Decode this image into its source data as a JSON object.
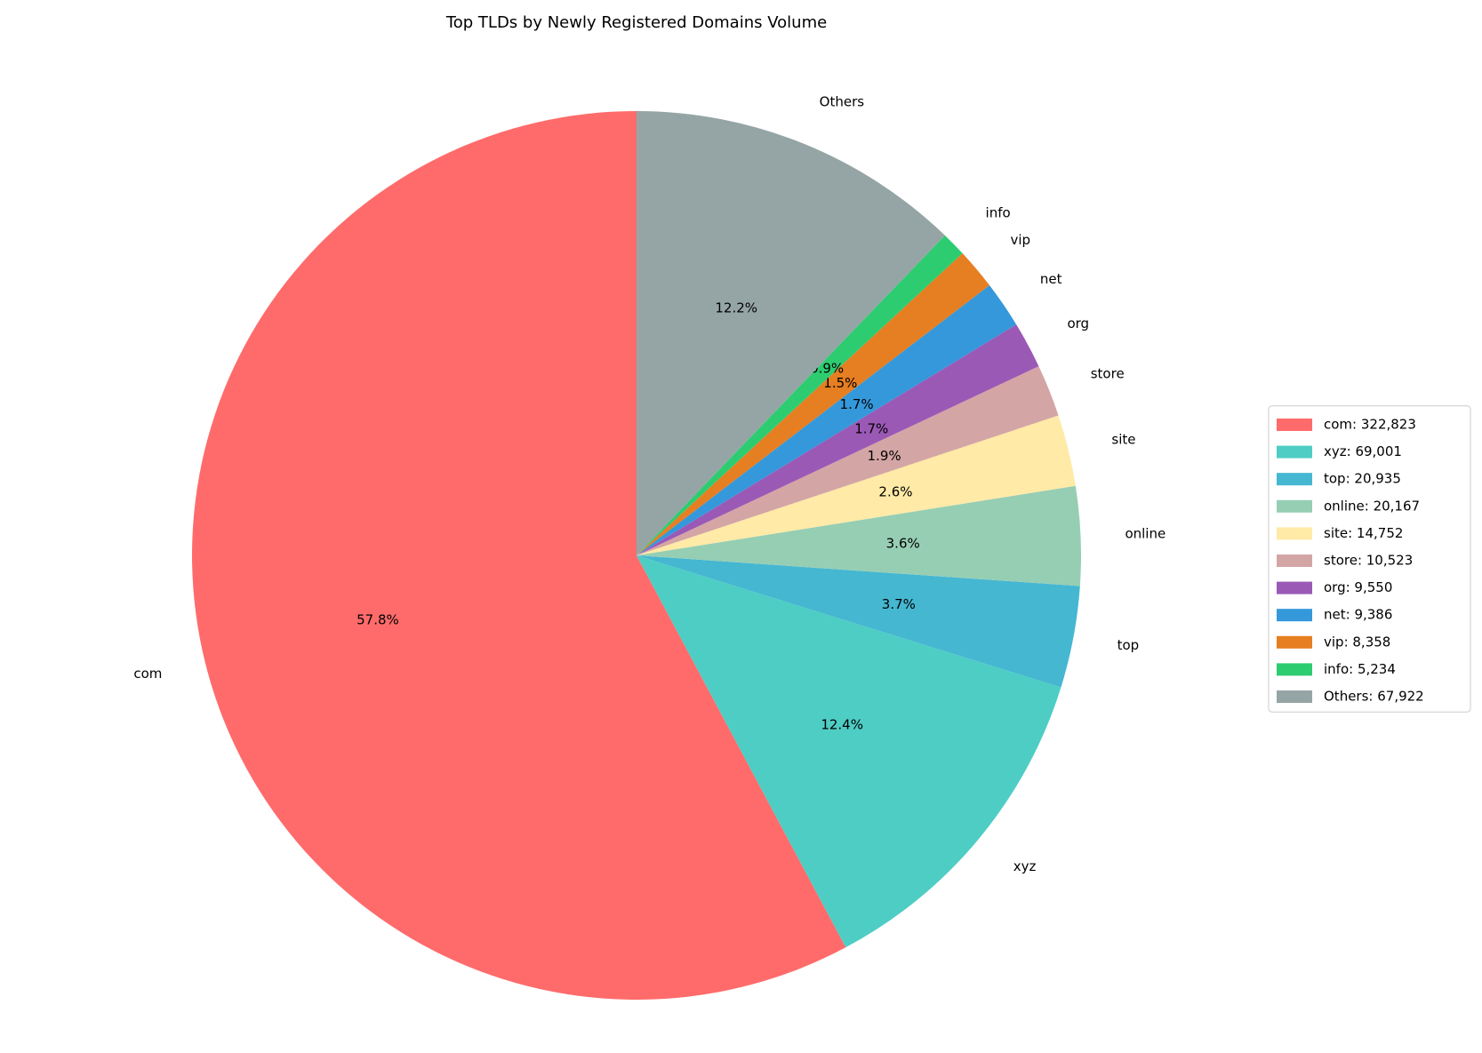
{
  "chart_data": {
    "type": "pie",
    "title": "Top TLDs by Newly Registered Domains Volume",
    "categories": [
      "com",
      "xyz",
      "top",
      "online",
      "site",
      "store",
      "org",
      "net",
      "vip",
      "info",
      "Others"
    ],
    "values": [
      57.8,
      12.4,
      3.7,
      3.6,
      2.6,
      1.9,
      1.7,
      1.7,
      1.5,
      0.9,
      12.2
    ],
    "value_labels": [
      "57.8%",
      "12.4%",
      "3.7%",
      "3.6%",
      "2.6%",
      "1.9%",
      "1.7%",
      "1.7%",
      "1.5%",
      "0.9%",
      "12.2%"
    ],
    "colors": [
      "#ff6b6b",
      "#4ecdc4",
      "#45b7d1",
      "#96ceb4",
      "#ffeaa7",
      "#d4a5a5",
      "#9b59b6",
      "#3498db",
      "#e67e22",
      "#2ecc71",
      "#95a5a6"
    ],
    "legend_labels": [
      "com: 322,823",
      "xyz: 69,001",
      "top: 20,935",
      "online: 20,167",
      "site: 14,752",
      "store: 10,523",
      "org: 9,550",
      "net: 9,386",
      "vip: 8,358",
      "info: 5,234",
      "Others: 67,922"
    ],
    "legend": "center right",
    "start_angle": 90
  }
}
